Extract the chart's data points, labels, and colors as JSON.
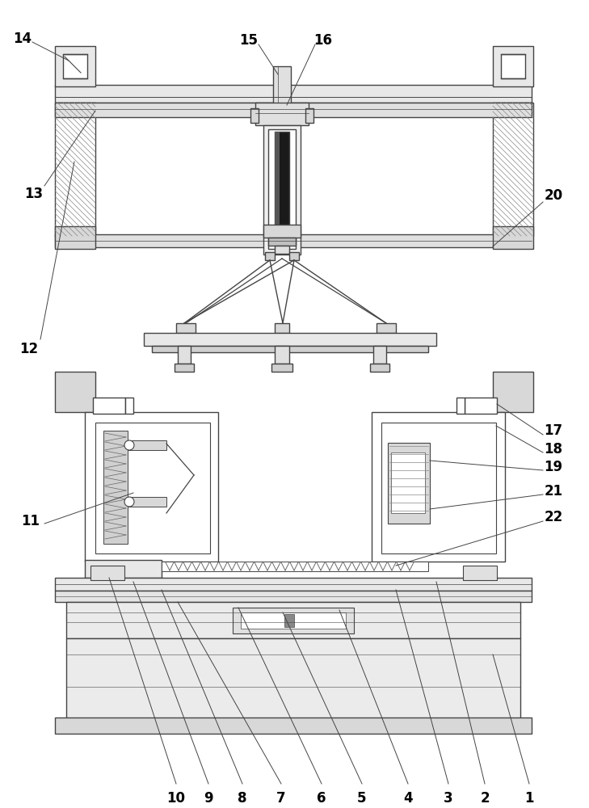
{
  "fig_width": 7.29,
  "fig_height": 10.0,
  "dpi": 100,
  "line_color": "#444444",
  "bg_color": "#ffffff"
}
